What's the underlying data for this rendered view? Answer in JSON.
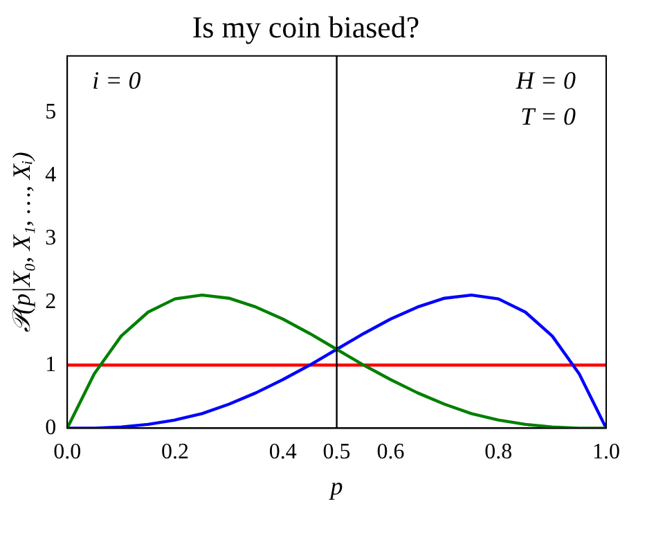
{
  "chart_data": {
    "type": "line",
    "title": "Is my coin biased?",
    "xlabel": "p",
    "ylabel": "𝒫(p|X₀, X₁, …, Xᵢ)",
    "x": [
      0,
      0.05,
      0.1,
      0.15,
      0.2,
      0.25,
      0.3,
      0.35,
      0.4,
      0.45,
      0.5,
      0.55,
      0.6,
      0.65,
      0.7,
      0.75,
      0.8,
      0.85,
      0.9,
      0.95,
      1
    ],
    "series": [
      {
        "color": "#008000",
        "values": [
          0,
          0.86,
          1.46,
          1.84,
          2.05,
          2.11,
          2.06,
          1.92,
          1.73,
          1.5,
          1.25,
          1,
          0.77,
          0.56,
          0.38,
          0.23,
          0.13,
          0.06,
          0.02,
          0,
          0
        ]
      },
      {
        "color": "#0000ff",
        "values": [
          0,
          0,
          0.02,
          0.06,
          0.13,
          0.23,
          0.38,
          0.56,
          0.77,
          1,
          1.25,
          1.5,
          1.73,
          1.92,
          2.06,
          2.11,
          2.05,
          1.84,
          1.46,
          0.86,
          0
        ]
      },
      {
        "color": "#ff0000",
        "values": [
          1,
          1,
          1,
          1,
          1,
          1,
          1,
          1,
          1,
          1,
          1,
          1,
          1,
          1,
          1,
          1,
          1,
          1,
          1,
          1,
          1
        ]
      }
    ],
    "xlim": [
      0,
      1
    ],
    "xticks": [
      {
        "value": 0,
        "label": "0.0"
      },
      {
        "value": 0.2,
        "label": "0.2"
      },
      {
        "value": 0.4,
        "label": "0.4"
      },
      0.5,
      {
        "value": 0.6,
        "label": "0.6"
      },
      {
        "value": 0.8,
        "label": "0.8"
      },
      {
        "value": 1,
        "label": "1.0"
      }
    ],
    "ylim": [
      0,
      5.9
    ],
    "yticks": [
      0,
      1,
      2,
      3,
      4,
      5
    ],
    "ref_lines": [
      {
        "axis": "x",
        "value": 0.5,
        "color": "#000000"
      }
    ],
    "annotations": [
      "i = 0",
      "H = 0",
      "T = 0"
    ],
    "grid": false,
    "legend": false,
    "marker": "none",
    "line_style": "solid"
  }
}
